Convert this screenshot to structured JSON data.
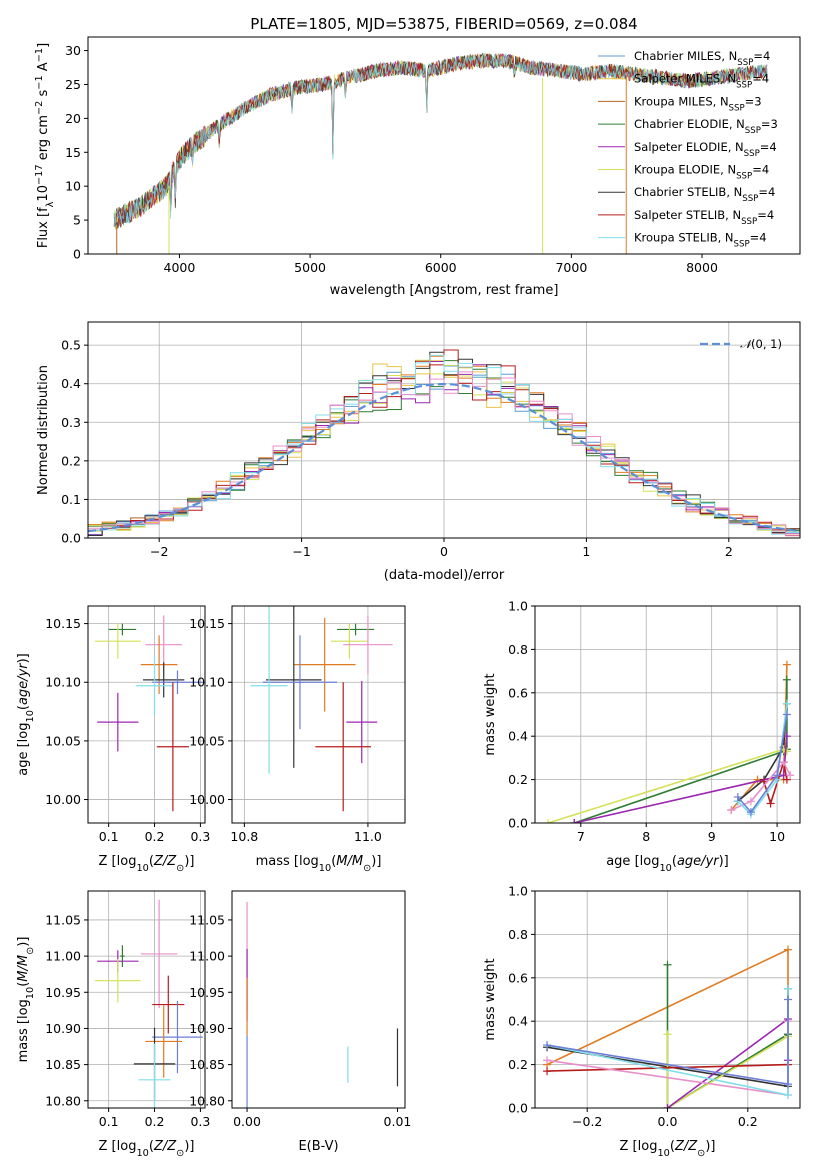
{
  "figure_title": "PLATE=1805, MJD=53875, FIBERID=0569, z=0.084",
  "colors": {
    "Chabrier MILES": "#5b9bd5",
    "Salpeter MILES": "#e8c547",
    "Kroupa MILES": "#b5651d",
    "Chabrier ELODIE": "#2e7d32",
    "Salpeter ELODIE": "#9c27b0",
    "Kroupa ELODIE": "#d4e157",
    "Chabrier STELIB": "#333333",
    "Salpeter STELIB": "#b71c1c",
    "Kroupa STELIB": "#80deea",
    "orange": "#e07b20",
    "blue": "#6b7fd7",
    "pink": "#e88fc9",
    "normal": "#5b8fd6"
  },
  "chart_data": [
    {
      "id": "spectrum",
      "type": "line",
      "title": "PLATE=1805, MJD=53875, FIBERID=0569, z=0.084",
      "xlabel": "wavelength [Angstrom, rest frame]",
      "ylabel": "Flux [f_λ 10^-17 erg cm^-2 s^-1 A^-1]",
      "xlim": [
        3300,
        8750
      ],
      "ylim": [
        0,
        32
      ],
      "xticks": [
        4000,
        5000,
        6000,
        7000,
        8000
      ],
      "yticks": [
        0,
        5,
        10,
        15,
        20,
        25,
        30
      ],
      "legend_position": "top-right",
      "series": [
        {
          "name": "Chabrier MILES, N_SSP=4",
          "color": "#5b9bd5"
        },
        {
          "name": "Salpeter MILES, N_SSP=4",
          "color": "#e8c547"
        },
        {
          "name": "Kroupa MILES, N_SSP=3",
          "color": "#b5651d"
        },
        {
          "name": "Chabrier ELODIE, N_SSP=3",
          "color": "#2e7d32"
        },
        {
          "name": "Salpeter ELODIE, N_SSP=4",
          "color": "#9c27b0"
        },
        {
          "name": "Kroupa ELODIE, N_SSP=4",
          "color": "#d4e157"
        },
        {
          "name": "Chabrier STELIB, N_SSP=4",
          "color": "#333333"
        },
        {
          "name": "Salpeter STELIB, N_SSP=4",
          "color": "#b71c1c"
        },
        {
          "name": "Kroupa STELIB, N_SSP=4",
          "color": "#80deea"
        }
      ],
      "continuum": {
        "x": [
          3500,
          3700,
          3900,
          4000,
          4100,
          4300,
          4500,
          4700,
          4900,
          5100,
          5300,
          5500,
          5700,
          5900,
          6100,
          6300,
          6500,
          6700,
          6900,
          7100,
          7300,
          7500,
          7700,
          7900,
          8100,
          8300,
          8500
        ],
        "y": [
          5,
          7,
          10,
          14,
          16,
          19,
          21.5,
          23.5,
          24.5,
          25,
          26,
          27,
          27.5,
          27,
          28,
          28.5,
          28.5,
          27.5,
          27,
          26.5,
          27,
          26.5,
          26,
          25.5,
          26,
          26.5,
          27
        ]
      }
    },
    {
      "id": "residuals",
      "type": "histogram",
      "xlabel": "(data-model)/error",
      "ylabel": "Normed distribution",
      "xlim": [
        -2.5,
        2.5
      ],
      "ylim": [
        0,
        0.56
      ],
      "xticks": [
        -2,
        -1,
        0,
        1,
        2
      ],
      "yticks": [
        0.0,
        0.1,
        0.2,
        0.3,
        0.4,
        0.5
      ],
      "grid": true,
      "legend_position": "top-right",
      "reference_curve": {
        "name": "N(0,1)",
        "mean": 0,
        "sigma": 1
      },
      "bin_width": 0.1,
      "bin_start": -2.5
    },
    {
      "id": "age-vs-Z",
      "type": "scatter",
      "xlabel": "Z [log10(Z/Z⊙)]",
      "ylabel": "age [log10(age/yr)]",
      "xlim": [
        0.055,
        0.31
      ],
      "ylim": [
        9.98,
        10.165
      ],
      "xticks": [
        0.1,
        0.2,
        0.3
      ],
      "yticks": [
        10.0,
        10.05,
        10.1,
        10.15
      ],
      "grid": true,
      "points": [
        {
          "x": 0.13,
          "y": 10.145,
          "xerr": 0.03,
          "yerr": 0.005,
          "color": "#2e7d32"
        },
        {
          "x": 0.12,
          "y": 10.135,
          "xerr": 0.05,
          "yerr": 0.015,
          "color": "#d4e157"
        },
        {
          "x": 0.22,
          "y": 10.132,
          "xerr": 0.04,
          "yerr": 0.025,
          "color": "#e88fc9"
        },
        {
          "x": 0.21,
          "y": 10.115,
          "xerr": 0.04,
          "yerr": 0.025,
          "color": "#e07b20"
        },
        {
          "x": 0.22,
          "y": 10.102,
          "xerr": 0.045,
          "yerr": 0.015,
          "color": "#333333"
        },
        {
          "x": 0.25,
          "y": 10.1,
          "xerr": 0.055,
          "yerr": 0.01,
          "color": "#6b7fd7"
        },
        {
          "x": 0.2,
          "y": 10.097,
          "xerr": 0.04,
          "yerr": 0.025,
          "color": "#80deea"
        },
        {
          "x": 0.12,
          "y": 10.066,
          "xerr": 0.045,
          "yerr": 0.025,
          "color": "#9c27b0"
        },
        {
          "x": 0.24,
          "y": 10.045,
          "xerr": 0.035,
          "yerr": 0.055,
          "color": "#b71c1c"
        }
      ]
    },
    {
      "id": "age-vs-mass",
      "type": "scatter",
      "xlabel": "mass [log10(M/M⊙)]",
      "ylabel": "",
      "xlim": [
        10.78,
        11.06
      ],
      "ylim": [
        9.98,
        10.165
      ],
      "xticks": [
        10.8,
        11.0
      ],
      "yticks": [
        10.0,
        10.05,
        10.1,
        10.15
      ],
      "grid": true,
      "points": [
        {
          "x": 10.98,
          "y": 10.145,
          "xerr": 0.03,
          "yerr": 0.005,
          "color": "#2e7d32"
        },
        {
          "x": 10.97,
          "y": 10.135,
          "xerr": 0.03,
          "yerr": 0.015,
          "color": "#d4e157"
        },
        {
          "x": 11.0,
          "y": 10.132,
          "xerr": 0.04,
          "yerr": 0.025,
          "color": "#e88fc9"
        },
        {
          "x": 10.93,
          "y": 10.115,
          "xerr": 0.05,
          "yerr": 0.04,
          "color": "#e07b20"
        },
        {
          "x": 10.88,
          "y": 10.102,
          "xerr": 0.045,
          "yerr": 0.075,
          "color": "#333333"
        },
        {
          "x": 10.89,
          "y": 10.1,
          "xerr": 0.06,
          "yerr": 0.04,
          "color": "#6b7fd7"
        },
        {
          "x": 10.84,
          "y": 10.097,
          "xerr": 0.03,
          "yerr": 0.075,
          "color": "#80deea"
        },
        {
          "x": 10.99,
          "y": 10.066,
          "xerr": 0.025,
          "yerr": 0.035,
          "color": "#9c27b0"
        },
        {
          "x": 10.96,
          "y": 10.045,
          "xerr": 0.045,
          "yerr": 0.055,
          "color": "#b71c1c"
        }
      ]
    },
    {
      "id": "weight-vs-age",
      "type": "line",
      "xlabel": "age [log10(age/yr)]",
      "ylabel": "mass weight",
      "xlim": [
        6.3,
        10.35
      ],
      "ylim": [
        0,
        1
      ],
      "xticks": [
        7,
        8,
        9,
        10
      ],
      "yticks": [
        0.0,
        0.2,
        0.4,
        0.6,
        0.8,
        1.0
      ],
      "grid": true,
      "series": [
        {
          "color": "#e07b20",
          "x": [
            9.3,
            9.7,
            10.1,
            10.15
          ],
          "y": [
            0.06,
            0.2,
            0.2,
            0.73
          ]
        },
        {
          "color": "#2e7d32",
          "x": [
            6.9,
            10.1,
            10.15,
            10.15
          ],
          "y": [
            0.0,
            0.33,
            0.34,
            0.66
          ]
        },
        {
          "color": "#333333",
          "x": [
            9.4,
            9.8,
            10.1,
            10.15
          ],
          "y": [
            0.1,
            0.2,
            0.35,
            0.55
          ]
        },
        {
          "color": "#d4e157",
          "x": [
            6.5,
            10.1,
            10.15
          ],
          "y": [
            0.0,
            0.34,
            0.33
          ]
        },
        {
          "color": "#9c27b0",
          "x": [
            6.9,
            10.1,
            10.15
          ],
          "y": [
            0.0,
            0.22,
            0.4
          ]
        },
        {
          "color": "#b71c1c",
          "x": [
            9.8,
            9.9,
            10.1,
            10.15
          ],
          "y": [
            0.19,
            0.09,
            0.28,
            0.2
          ]
        },
        {
          "color": "#e88fc9",
          "x": [
            9.3,
            9.6,
            10.1,
            10.2
          ],
          "y": [
            0.06,
            0.1,
            0.28,
            0.22
          ]
        },
        {
          "color": "#80deea",
          "x": [
            9.4,
            9.6,
            10.0,
            10.15
          ],
          "y": [
            0.1,
            0.04,
            0.2,
            0.55
          ]
        },
        {
          "color": "#6b7fd7",
          "x": [
            9.4,
            9.6,
            10.0,
            10.15
          ],
          "y": [
            0.12,
            0.05,
            0.22,
            0.5
          ]
        }
      ]
    },
    {
      "id": "mass-vs-Z",
      "type": "scatter",
      "xlabel": "Z [log10(Z/Z⊙)]",
      "ylabel": "mass [log10(M/M⊙)]",
      "xlim": [
        0.055,
        0.31
      ],
      "ylim": [
        10.79,
        11.09
      ],
      "xticks": [
        0.1,
        0.2,
        0.3
      ],
      "yticks": [
        10.8,
        10.85,
        10.9,
        10.95,
        11.0,
        11.05
      ],
      "grid": true,
      "points": [
        {
          "x": 0.13,
          "y": 11.0,
          "xerr": 0.005,
          "yerr": 0.015,
          "color": "#2e7d32"
        },
        {
          "x": 0.12,
          "y": 10.993,
          "xerr": 0.045,
          "yerr": 0.015,
          "color": "#9c27b0"
        },
        {
          "x": 0.21,
          "y": 11.003,
          "xerr": 0.04,
          "yerr": 0.075,
          "color": "#e88fc9"
        },
        {
          "x": 0.12,
          "y": 10.966,
          "xerr": 0.05,
          "yerr": 0.03,
          "color": "#d4e157"
        },
        {
          "x": 0.23,
          "y": 10.933,
          "xerr": 0.035,
          "yerr": 0.04,
          "color": "#b71c1c"
        },
        {
          "x": 0.25,
          "y": 10.888,
          "xerr": 0.055,
          "yerr": 0.05,
          "color": "#6b7fd7"
        },
        {
          "x": 0.22,
          "y": 10.882,
          "xerr": 0.04,
          "yerr": 0.05,
          "color": "#e07b20"
        },
        {
          "x": 0.2,
          "y": 10.851,
          "xerr": 0.045,
          "yerr": 0.05,
          "color": "#333333"
        },
        {
          "x": 0.2,
          "y": 10.829,
          "xerr": 0.035,
          "yerr": 0.05,
          "color": "#80deea"
        }
      ]
    },
    {
      "id": "mass-vs-EBV",
      "type": "scatter",
      "xlabel": "E(B-V)",
      "ylabel": "",
      "xlim": [
        -0.001,
        0.0105
      ],
      "ylim": [
        10.79,
        11.09
      ],
      "xticks": [
        0.0,
        0.01
      ],
      "yticks": [
        10.8,
        10.85,
        10.9,
        10.95,
        11.0,
        11.05
      ],
      "grid": false,
      "points": [
        {
          "x": 0.0,
          "y": 11.0,
          "xerr": 0,
          "yerr": 0.075,
          "color": "#e88fc9"
        },
        {
          "x": 0.0,
          "y": 10.96,
          "xerr": 0,
          "yerr": 0.05,
          "color": "#9c27b0"
        },
        {
          "x": 0.0,
          "y": 10.93,
          "xerr": 0,
          "yerr": 0.04,
          "color": "#e07b20"
        },
        {
          "x": 0.0,
          "y": 10.84,
          "xerr": 0,
          "yerr": 0.05,
          "color": "#6b7fd7"
        },
        {
          "x": 0.0067,
          "y": 10.85,
          "xerr": 0,
          "yerr": 0.025,
          "color": "#80deea"
        },
        {
          "x": 0.01,
          "y": 10.86,
          "xerr": 0,
          "yerr": 0.04,
          "color": "#333333"
        }
      ]
    },
    {
      "id": "weight-vs-Z",
      "type": "line",
      "xlabel": "Z [log10(Z/Z⊙)]",
      "ylabel": "mass weight",
      "xlim": [
        -0.33,
        0.33
      ],
      "ylim": [
        0,
        1
      ],
      "xticks": [
        -0.2,
        0.0,
        0.2
      ],
      "yticks": [
        0.0,
        0.2,
        0.4,
        0.6,
        0.8,
        1.0
      ],
      "grid": true,
      "series": [
        {
          "color": "#e07b20",
          "x": [
            -0.3,
            0.3,
            0.3
          ],
          "y": [
            0.2,
            0.73,
            0.34
          ]
        },
        {
          "color": "#2e7d32",
          "x": [
            0.0,
            0.0,
            0.3
          ],
          "y": [
            0.66,
            0.0,
            0.34
          ]
        },
        {
          "color": "#333333",
          "x": [
            -0.3,
            0.3,
            0.3
          ],
          "y": [
            0.28,
            0.1,
            0.55
          ]
        },
        {
          "color": "#d4e157",
          "x": [
            0.0,
            0.0,
            0.3
          ],
          "y": [
            0.34,
            0.0,
            0.33
          ]
        },
        {
          "color": "#9c27b0",
          "x": [
            0.0,
            0.3,
            0.3
          ],
          "y": [
            0.0,
            0.41,
            0.22
          ]
        },
        {
          "color": "#b71c1c",
          "x": [
            -0.3,
            0.3
          ],
          "y": [
            0.17,
            0.2
          ]
        },
        {
          "color": "#e88fc9",
          "x": [
            -0.3,
            0.3,
            0.3
          ],
          "y": [
            0.22,
            0.06,
            0.4
          ]
        },
        {
          "color": "#80deea",
          "x": [
            -0.3,
            0.3,
            0.3
          ],
          "y": [
            0.29,
            0.06,
            0.55
          ]
        },
        {
          "color": "#6b7fd7",
          "x": [
            -0.3,
            0.3,
            0.3
          ],
          "y": [
            0.29,
            0.11,
            0.5
          ]
        }
      ]
    }
  ]
}
